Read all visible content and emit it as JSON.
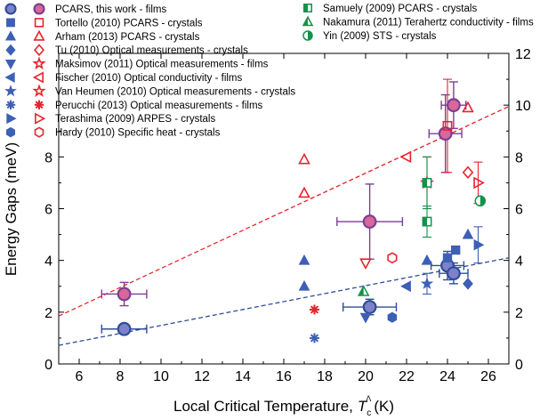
{
  "chart_data": {
    "type": "scatter",
    "title": "",
    "xlabel": "Local Critical Temperature,",
    "xlabel_symbol": "T",
    "xlabel_subscript": "c",
    "xlabel_superscript": "Λ",
    "xlabel_unit": "(K)",
    "ylabel": "Energy Gaps (meV)",
    "xlim": [
      5,
      27
    ],
    "ylim": [
      0,
      12
    ],
    "x_ticks": [
      6,
      8,
      10,
      12,
      14,
      16,
      18,
      20,
      22,
      24,
      26
    ],
    "y_ticks_left": [
      0,
      2,
      4,
      6,
      8
    ],
    "y_ticks_right": [
      0,
      2,
      4,
      6,
      8,
      10,
      12
    ],
    "colors": {
      "blue": "#3d5fb5",
      "red": "#e8232d",
      "green": "#13924a",
      "purple": "#7b3f93",
      "pink": "#d9679a",
      "slate": "#7e82c8",
      "blue_dash": "#2e4d9a"
    },
    "legend_col1": [
      {
        "label": "PCARS, this work - films",
        "marker": "circle",
        "style": "pcars-blue"
      },
      {
        "label": "Tortello (2010) PCARS - crystals",
        "marker": "square",
        "style": "blue"
      },
      {
        "label": "Arham (2013) PCARS - crystals",
        "marker": "triangle-up",
        "style": "blue"
      },
      {
        "label": "Tu (2010) Optical measurements - crystals",
        "marker": "diamond",
        "style": "blue"
      },
      {
        "label": "Maksimov (2011) Optical measurements - films",
        "marker": "triangle-down",
        "style": "blue"
      },
      {
        "label": "Fischer (2010) Optical conductivity - films",
        "marker": "triangle-left",
        "style": "blue"
      },
      {
        "label": "Van Heumen (2010) Optical measurements - crystals",
        "marker": "star",
        "style": "blue"
      },
      {
        "label": "Perucchi (2013) Optical measurements - films",
        "marker": "asterisk",
        "style": "blue"
      },
      {
        "label": "Terashima (2009) ARPES - crystals",
        "marker": "triangle-right",
        "style": "blue"
      },
      {
        "label": "Hardy (2010) Specific heat - crystals",
        "marker": "hexagon",
        "style": "blue"
      }
    ],
    "legend_col2": [
      {
        "marker": "circle",
        "style": "pcars-red"
      },
      {
        "marker": "square",
        "style": "red"
      },
      {
        "marker": "triangle-up",
        "style": "red"
      },
      {
        "marker": "diamond",
        "style": "red"
      },
      {
        "marker": "star",
        "style": "red"
      },
      {
        "marker": "triangle-left",
        "style": "red"
      },
      {
        "marker": "star",
        "style": "red"
      },
      {
        "marker": "asterisk",
        "style": "red"
      },
      {
        "marker": "triangle-right",
        "style": "red"
      },
      {
        "marker": "hexagon",
        "style": "red"
      }
    ],
    "legend_col3": [
      {
        "label": "Samuely (2009) PCARS - crystals",
        "marker": "square-half",
        "style": "green"
      },
      {
        "label": "Nakamura (2011) Terahertz conductivity - films",
        "marker": "triangle-half",
        "style": "green"
      },
      {
        "label": "Yin (2009) STS - crystals",
        "marker": "circle-half",
        "style": "green"
      }
    ],
    "fit_lines": [
      {
        "name": "large gap fit",
        "style": "red",
        "points": [
          [
            5,
            1.85
          ],
          [
            27,
            9.95
          ]
        ]
      },
      {
        "name": "small gap fit",
        "style": "blue",
        "points": [
          [
            5,
            0.72
          ],
          [
            27,
            4.1
          ]
        ]
      }
    ],
    "points": [
      {
        "x": 8.2,
        "y": 2.7,
        "marker": "circle",
        "style": "pcars-red",
        "xerr": 1.1,
        "yerr": 0.45
      },
      {
        "x": 8.2,
        "y": 1.35,
        "marker": "circle",
        "style": "pcars-blue",
        "xerr": 1.1,
        "yerr": 0.15
      },
      {
        "x": 20.2,
        "y": 5.5,
        "marker": "circle",
        "style": "pcars-red",
        "xerr": 1.6,
        "yerr": 1.45
      },
      {
        "x": 20.2,
        "y": 2.2,
        "marker": "circle",
        "style": "pcars-blue",
        "xerr": 1.3,
        "yerr": 0.3
      },
      {
        "x": 23.9,
        "y": 8.9,
        "marker": "circle",
        "style": "pcars-red",
        "xerr": 0.8,
        "yerr": 1.5
      },
      {
        "x": 24.3,
        "y": 10.0,
        "marker": "circle",
        "style": "pcars-red",
        "xerr": 0.6,
        "yerr": 0.9
      },
      {
        "x": 24.0,
        "y": 3.8,
        "marker": "circle",
        "style": "pcars-blue",
        "xerr": 0.8,
        "yerr": 0.55
      },
      {
        "x": 24.3,
        "y": 3.5,
        "marker": "circle",
        "style": "pcars-blue",
        "xerr": 0.7,
        "yerr": 0.4
      },
      {
        "x": 24.0,
        "y": 9.2,
        "marker": "square",
        "style": "red",
        "yerr": 1.8
      },
      {
        "x": 24.0,
        "y": 4.1,
        "marker": "square",
        "style": "blue"
      },
      {
        "x": 24.4,
        "y": 4.4,
        "marker": "square",
        "style": "blue"
      },
      {
        "x": 17.0,
        "y": 7.9,
        "marker": "triangle-up",
        "style": "red"
      },
      {
        "x": 17.0,
        "y": 6.6,
        "marker": "triangle-up",
        "style": "red"
      },
      {
        "x": 17.0,
        "y": 4.0,
        "marker": "triangle-up",
        "style": "blue"
      },
      {
        "x": 17.0,
        "y": 3.0,
        "marker": "triangle-up",
        "style": "blue"
      },
      {
        "x": 23.0,
        "y": 4.0,
        "marker": "triangle-up",
        "style": "blue"
      },
      {
        "x": 25.0,
        "y": 5.0,
        "marker": "triangle-up",
        "style": "blue"
      },
      {
        "x": 25.0,
        "y": 9.9,
        "marker": "triangle-up",
        "style": "red"
      },
      {
        "x": 25.0,
        "y": 7.4,
        "marker": "diamond",
        "style": "red"
      },
      {
        "x": 25.0,
        "y": 3.1,
        "marker": "diamond",
        "style": "blue"
      },
      {
        "x": 20.0,
        "y": 3.9,
        "marker": "triangle-down",
        "style": "red"
      },
      {
        "x": 20.0,
        "y": 1.8,
        "marker": "triangle-down",
        "style": "blue"
      },
      {
        "x": 22.0,
        "y": 8.0,
        "marker": "triangle-left",
        "style": "red"
      },
      {
        "x": 22.0,
        "y": 3.0,
        "marker": "triangle-left",
        "style": "blue"
      },
      {
        "x": 23.0,
        "y": 7.0,
        "marker": "star",
        "style": "red",
        "yerr": 1.0
      },
      {
        "x": 23.0,
        "y": 3.1,
        "marker": "star",
        "style": "blue",
        "yerr": 0.4
      },
      {
        "x": 17.5,
        "y": 2.1,
        "marker": "asterisk",
        "style": "red"
      },
      {
        "x": 17.5,
        "y": 1.0,
        "marker": "asterisk",
        "style": "blue"
      },
      {
        "x": 25.5,
        "y": 7.0,
        "marker": "triangle-right",
        "style": "red",
        "yerr": 0.8
      },
      {
        "x": 25.5,
        "y": 4.6,
        "marker": "triangle-right",
        "style": "blue",
        "yerr": 0.7
      },
      {
        "x": 21.3,
        "y": 4.1,
        "marker": "hexagon",
        "style": "red"
      },
      {
        "x": 21.3,
        "y": 1.8,
        "marker": "hexagon",
        "style": "blue"
      },
      {
        "x": 23.0,
        "y": 7.0,
        "marker": "square-half",
        "style": "green",
        "yerr": 1.0
      },
      {
        "x": 23.0,
        "y": 5.5,
        "marker": "square-half",
        "style": "green",
        "yerr": 0.6
      },
      {
        "x": 19.9,
        "y": 2.8,
        "marker": "triangle-half",
        "style": "green"
      },
      {
        "x": 25.6,
        "y": 6.3,
        "marker": "circle-half",
        "style": "green"
      }
    ]
  }
}
